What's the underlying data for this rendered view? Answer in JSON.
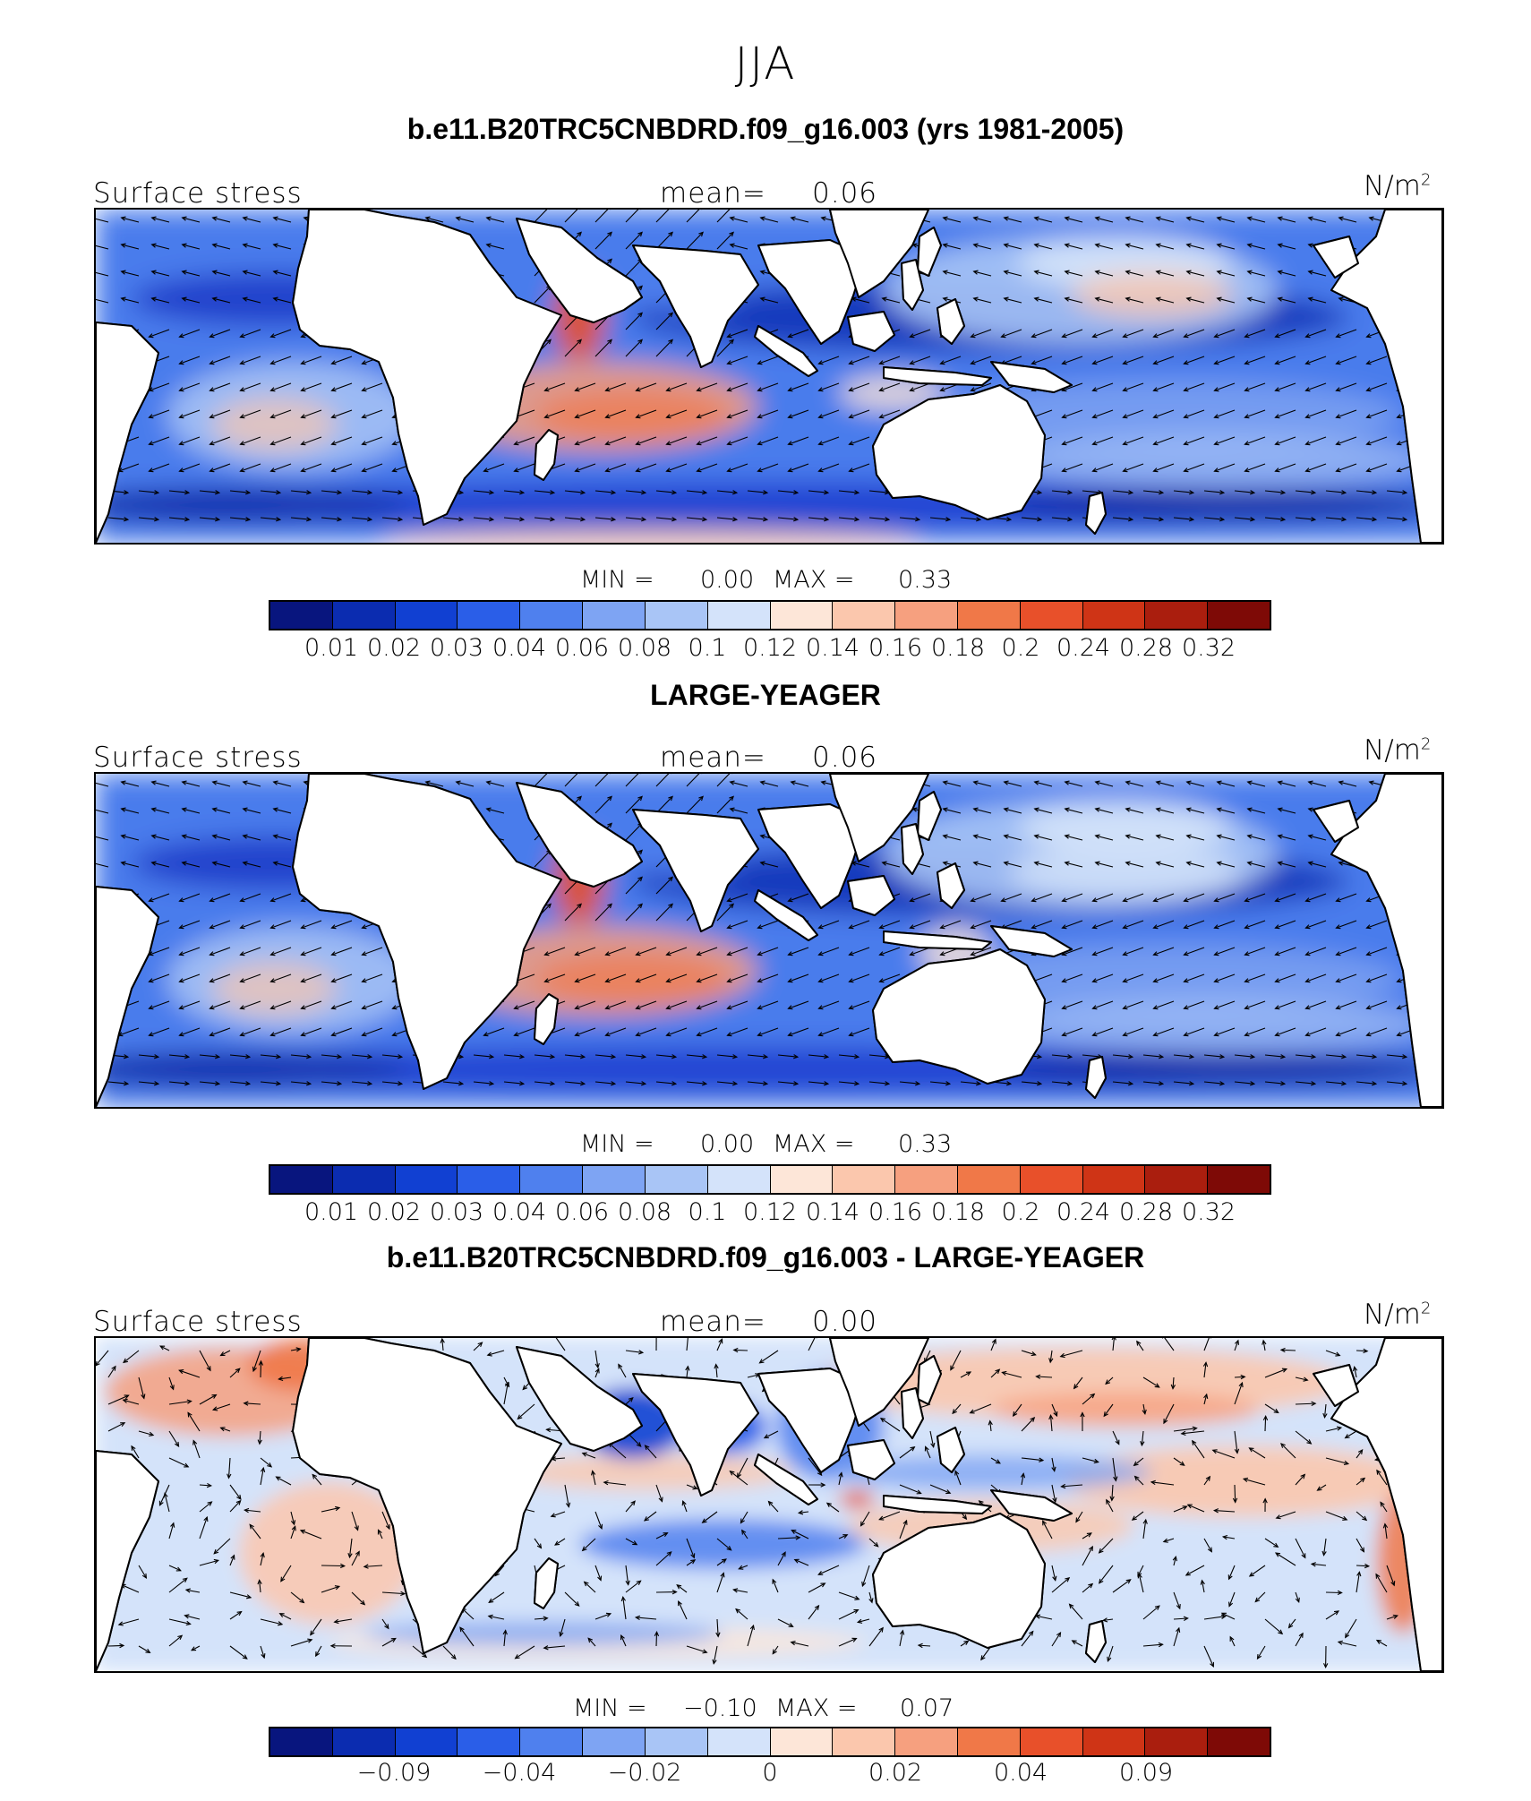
{
  "season": "JJA",
  "palette": [
    "#08157e",
    "#0b2cb0",
    "#1140d2",
    "#2a5ee8",
    "#4f80ee",
    "#7ea4f3",
    "#a9c5f6",
    "#d4e3fa",
    "#fde6d8",
    "#fbc7ad",
    "#f6a07f",
    "#f07848",
    "#e8502a",
    "#cf3416",
    "#aa1e0e",
    "#7e0a06"
  ],
  "panels": [
    {
      "title": "b.e11.B20TRC5CNBDRD.f09_g16.003 (yrs 1981-2005)",
      "label": "Surface stress",
      "mean_label": "mean=",
      "mean_value": "0.06",
      "units": "N/m",
      "units_sup": "2",
      "min_label": "MIN =",
      "min_value": "0.00",
      "max_label": "MAX =",
      "max_value": "0.33",
      "colorbar_ticks": [
        "0.01",
        "0.02",
        "0.03",
        "0.04",
        "0.06",
        "0.08",
        "0.1",
        "0.12",
        "0.14",
        "0.16",
        "0.18",
        "0.2",
        "0.24",
        "0.28",
        "0.32"
      ]
    },
    {
      "title": "LARGE-YEAGER",
      "label": "Surface stress",
      "mean_label": "mean=",
      "mean_value": "0.06",
      "units": "N/m",
      "units_sup": "2",
      "min_label": "MIN =",
      "min_value": "0.00",
      "max_label": "MAX =",
      "max_value": "0.33",
      "colorbar_ticks": [
        "0.01",
        "0.02",
        "0.03",
        "0.04",
        "0.06",
        "0.08",
        "0.1",
        "0.12",
        "0.14",
        "0.16",
        "0.18",
        "0.2",
        "0.24",
        "0.28",
        "0.32"
      ]
    },
    {
      "title": "b.e11.B20TRC5CNBDRD.f09_g16.003 - LARGE-YEAGER",
      "label": "Surface stress",
      "mean_label": "mean=",
      "mean_value": "0.00",
      "units": "N/m",
      "units_sup": "2",
      "min_label": "MIN =",
      "min_value": "−0.10",
      "max_label": "MAX =",
      "max_value": "0.07",
      "colorbar_ticks": [
        "",
        "−0.09",
        "",
        "−0.04",
        "",
        "−0.02",
        "",
        "0",
        "",
        "0.02",
        "",
        "0.04",
        "",
        "0.09",
        ""
      ]
    }
  ]
}
